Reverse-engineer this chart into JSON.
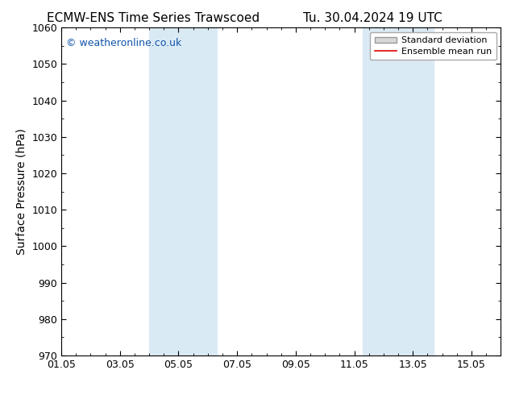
{
  "title_left": "ECMW-ENS Time Series Trawscoed",
  "title_right": "Tu. 30.04.2024 19 UTC",
  "ylabel": "Surface Pressure (hPa)",
  "ylim": [
    970,
    1060
  ],
  "yticks": [
    970,
    980,
    990,
    1000,
    1010,
    1020,
    1030,
    1040,
    1050,
    1060
  ],
  "xlim_start": 0.0,
  "xlim_end": 15.0,
  "xtick_labels": [
    "01.05",
    "03.05",
    "05.05",
    "07.05",
    "09.05",
    "11.05",
    "13.05",
    "15.05"
  ],
  "xtick_positions": [
    0,
    2,
    4,
    6,
    8,
    10,
    12,
    14
  ],
  "shaded_bands": [
    {
      "x_start": 3.0,
      "x_end": 5.3
    },
    {
      "x_start": 10.3,
      "x_end": 12.7
    }
  ],
  "shaded_color": "#daeaf5",
  "watermark_text": "© weatheronline.co.uk",
  "watermark_color": "#1155aa",
  "legend_std_label": "Standard deviation",
  "legend_mean_label": "Ensemble mean run",
  "legend_std_facecolor": "#d8d8d8",
  "legend_std_edgecolor": "#999999",
  "legend_mean_color": "#dd0000",
  "bg_color": "#ffffff",
  "spine_color": "#000000",
  "title_fontsize": 11,
  "axis_label_fontsize": 10,
  "tick_fontsize": 9,
  "watermark_fontsize": 9,
  "legend_fontsize": 8
}
